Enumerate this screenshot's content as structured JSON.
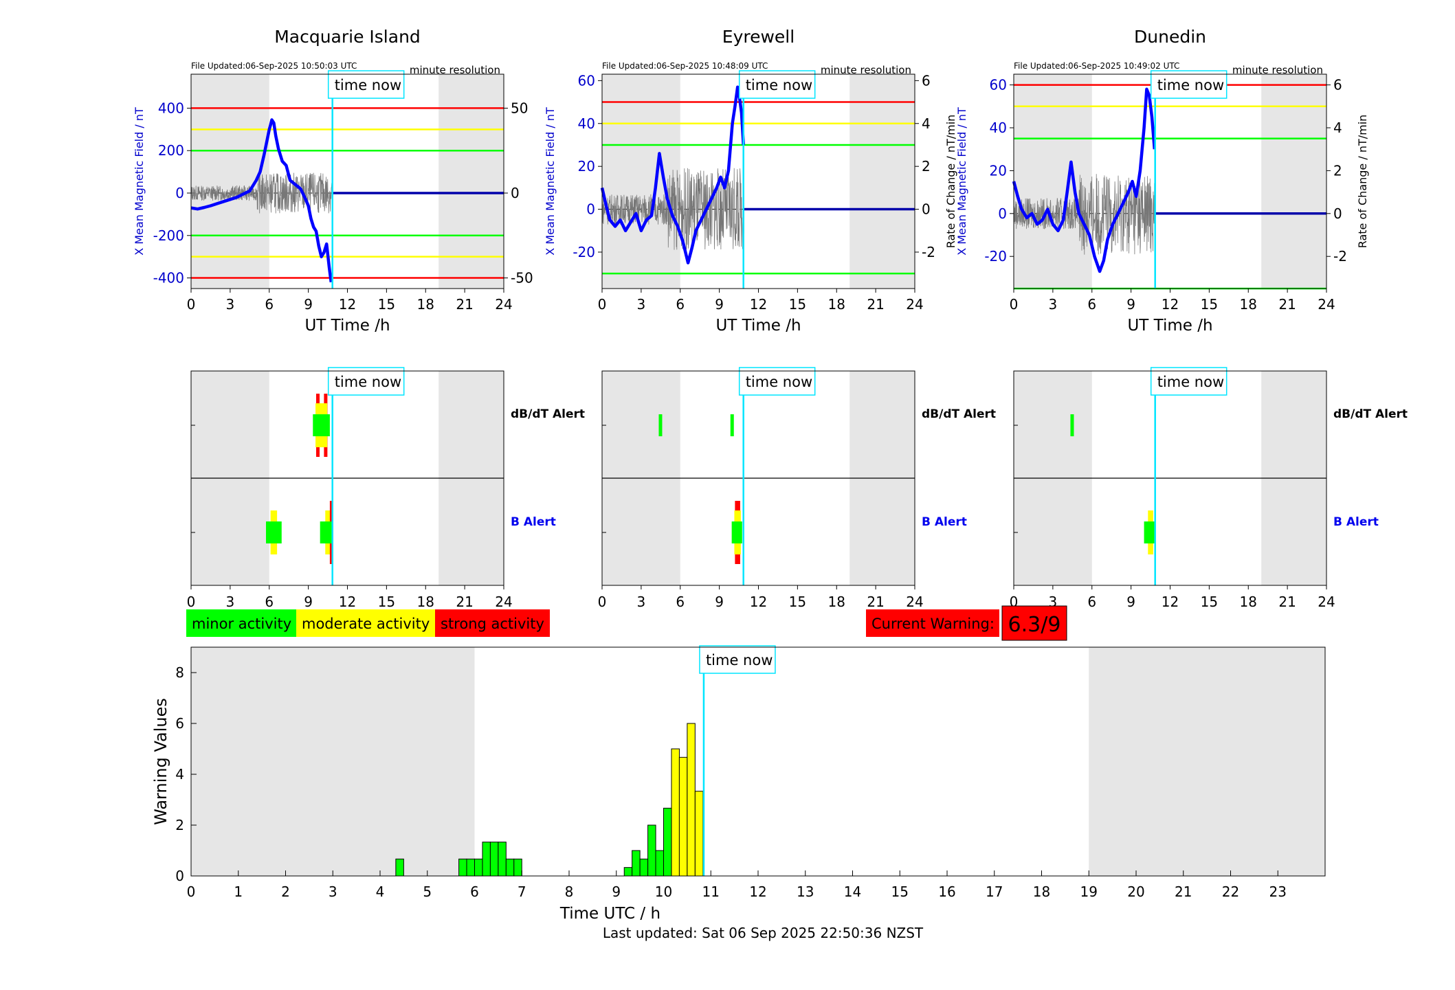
{
  "stations": [
    {
      "title": "Macquarie Island",
      "file_updated": "File Updated:06-Sep-2025 10:50:03 UTC",
      "resolution": "minute resolution",
      "left_axis_label": "X Mean Magnetic Field / nT",
      "right_axis_label": "",
      "x_label": "UT Time /h",
      "time_now_label": "time now",
      "ylim": [
        -450,
        560
      ],
      "left_ticks": [
        -400,
        -200,
        0,
        200,
        400
      ],
      "right_ticks": [
        -50,
        0,
        50
      ],
      "right_scale": 8,
      "thresholds": [
        {
          "value": 400,
          "color": "#ff0000"
        },
        {
          "value": 300,
          "color": "#ffff00"
        },
        {
          "value": 200,
          "color": "#00ff00"
        },
        {
          "value": -200,
          "color": "#00ff00"
        },
        {
          "value": -300,
          "color": "#ffff00"
        },
        {
          "value": -400,
          "color": "#ff0000"
        }
      ],
      "trace_x": [
        0,
        0.5,
        1,
        1.5,
        2,
        2.5,
        3,
        3.5,
        4,
        4.5,
        5,
        5.3,
        5.6,
        5.8,
        6,
        6.1,
        6.2,
        6.35,
        6.5,
        6.7,
        7,
        7.3,
        7.6,
        8,
        8.4,
        8.8,
        9,
        9.2,
        9.4,
        9.6,
        9.8,
        10,
        10.2,
        10.4,
        10.6,
        10.75
      ],
      "trace_y": [
        -70,
        -75,
        -68,
        -60,
        -50,
        -40,
        -30,
        -20,
        -5,
        10,
        60,
        100,
        180,
        240,
        300,
        320,
        345,
        330,
        270,
        210,
        150,
        130,
        60,
        40,
        20,
        -30,
        -60,
        -120,
        -160,
        -180,
        -250,
        -300,
        -280,
        -240,
        -350,
        -420
      ],
      "flat_from": 10.8,
      "flat_value": 0,
      "noise_amp": 60,
      "noise_mid": 0
    },
    {
      "title": "Eyrewell",
      "file_updated": "File Updated:06-Sep-2025 10:48:09 UTC",
      "resolution": "minute resolution",
      "left_axis_label": "X Mean Magnetic Field / nT",
      "right_axis_label": "Rate of Change / nT/min",
      "x_label": "UT Time /h",
      "time_now_label": "time now",
      "ylim": [
        -37,
        63
      ],
      "left_ticks": [
        -20,
        0,
        20,
        40,
        60
      ],
      "right_ticks": [
        -2,
        0,
        2,
        4,
        6
      ],
      "right_scale": 10,
      "thresholds": [
        {
          "value": 50,
          "color": "#ff0000"
        },
        {
          "value": 40,
          "color": "#ffff00"
        },
        {
          "value": 30,
          "color": "#00ff00"
        },
        {
          "value": -30,
          "color": "#00ff00"
        }
      ],
      "trace_x": [
        0,
        0.3,
        0.6,
        1,
        1.4,
        1.8,
        2.2,
        2.6,
        3,
        3.4,
        3.8,
        4.1,
        4.4,
        4.7,
        5,
        5.4,
        5.8,
        6.2,
        6.6,
        6.9,
        7.2,
        7.6,
        8,
        8.4,
        8.8,
        9.1,
        9.4,
        9.7,
        10,
        10.2,
        10.4,
        10.55,
        10.7,
        10.85
      ],
      "trace_y": [
        10,
        2,
        -5,
        -8,
        -5,
        -10,
        -6,
        -2,
        -10,
        -5,
        -3,
        10,
        26,
        15,
        5,
        -3,
        -8,
        -15,
        -25,
        -18,
        -10,
        -5,
        0,
        5,
        10,
        15,
        10,
        18,
        40,
        48,
        57,
        52,
        45,
        30
      ],
      "flat_from": 10.9,
      "flat_value": 0,
      "noise_amp": 12,
      "noise_mid": 0
    },
    {
      "title": "Dunedin",
      "file_updated": "File Updated:06-Sep-2025 10:49:02 UTC",
      "resolution": "minute resolution",
      "left_axis_label": "X Mean Magnetic Field / nT",
      "right_axis_label": "Rate of Change / nT/min",
      "x_label": "UT Time /h",
      "time_now_label": "time now",
      "ylim": [
        -35,
        65
      ],
      "left_ticks": [
        -20,
        0,
        20,
        40,
        60
      ],
      "right_ticks": [
        -2,
        0,
        2,
        4,
        6
      ],
      "right_scale": 10,
      "thresholds": [
        {
          "value": 60,
          "color": "#ff0000"
        },
        {
          "value": 50,
          "color": "#ffff00"
        },
        {
          "value": 35,
          "color": "#00ff00"
        },
        {
          "value": -35,
          "color": "#00ff00"
        }
      ],
      "trace_x": [
        0,
        0.3,
        0.6,
        1,
        1.4,
        1.8,
        2.2,
        2.6,
        3,
        3.4,
        3.8,
        4.1,
        4.4,
        4.7,
        5,
        5.4,
        5.8,
        6.2,
        6.6,
        6.9,
        7.2,
        7.6,
        8,
        8.4,
        8.8,
        9.1,
        9.4,
        9.7,
        10,
        10.2,
        10.4,
        10.6,
        10.8
      ],
      "trace_y": [
        15,
        8,
        2,
        -2,
        0,
        -5,
        -3,
        2,
        -5,
        -8,
        -3,
        10,
        24,
        10,
        0,
        -5,
        -10,
        -20,
        -27,
        -22,
        -12,
        -5,
        0,
        5,
        10,
        15,
        8,
        20,
        40,
        58,
        55,
        45,
        30
      ],
      "flat_from": 10.85,
      "flat_value": 0,
      "noise_amp": 12,
      "noise_mid": 0
    }
  ],
  "alert_panels": [
    {
      "time_now_label": "time now",
      "dbdt_label": "dB/dT Alert",
      "b_label": "B Alert",
      "dbdt_marks": [
        {
          "x": 9.6,
          "w": 0.15,
          "level": "strong"
        },
        {
          "x": 10.2,
          "w": 0.15,
          "level": "strong"
        },
        {
          "x": 9.55,
          "w": 0.9,
          "level": "moderate"
        },
        {
          "x": 9.35,
          "w": 1.3,
          "level": "minor"
        }
      ],
      "b_marks": [
        {
          "x": 6.1,
          "w": 0.5,
          "level": "moderate"
        },
        {
          "x": 5.75,
          "w": 1.2,
          "level": "minor"
        },
        {
          "x": 10.3,
          "w": 0.4,
          "level": "moderate"
        },
        {
          "x": 10.65,
          "w": 0.15,
          "level": "strong"
        },
        {
          "x": 9.9,
          "w": 0.9,
          "level": "minor"
        }
      ]
    },
    {
      "time_now_label": "time now",
      "dbdt_label": "dB/dT Alert",
      "b_label": "B Alert",
      "dbdt_marks": [
        {
          "x": 4.35,
          "w": 0.2,
          "level": "minor"
        },
        {
          "x": 9.85,
          "w": 0.2,
          "level": "minor"
        }
      ],
      "b_marks": [
        {
          "x": 10.2,
          "w": 0.4,
          "level": "strong"
        },
        {
          "x": 10.15,
          "w": 0.5,
          "level": "moderate"
        },
        {
          "x": 9.95,
          "w": 0.8,
          "level": "minor"
        }
      ]
    },
    {
      "time_now_label": "time now",
      "dbdt_label": "dB/dT Alert",
      "b_label": "B Alert",
      "dbdt_marks": [
        {
          "x": 4.35,
          "w": 0.2,
          "level": "minor"
        }
      ],
      "b_marks": [
        {
          "x": 10.3,
          "w": 0.4,
          "level": "moderate"
        },
        {
          "x": 10.0,
          "w": 0.9,
          "level": "minor"
        }
      ]
    }
  ],
  "legend": [
    {
      "label": "minor activity",
      "color": "#00ff00"
    },
    {
      "label": "moderate activity",
      "color": "#ffff00"
    },
    {
      "label": "strong activity",
      "color": "#ff0000"
    }
  ],
  "current_warning": {
    "label": "Current Warning:",
    "value": "6.3/9",
    "color": "#ff0000"
  },
  "chart_data": {
    "type": "bar",
    "xlabel": "Time UTC / h",
    "ylabel": "Warning Values",
    "xlim": [
      0,
      24
    ],
    "ylim": [
      0,
      9
    ],
    "x_ticks": [
      0,
      1,
      2,
      3,
      4,
      5,
      6,
      7,
      8,
      9,
      10,
      11,
      12,
      13,
      14,
      15,
      16,
      17,
      18,
      19,
      20,
      21,
      22,
      23
    ],
    "y_ticks": [
      0,
      2,
      4,
      6,
      8
    ],
    "time_now": 10.85,
    "time_now_label": "time now",
    "shaded_ranges": [
      [
        0,
        6
      ],
      [
        19,
        24
      ]
    ],
    "bar_width": 0.1667,
    "bars": [
      {
        "x": 4.333,
        "value": 0.667,
        "level": "minor"
      },
      {
        "x": 5.667,
        "value": 0.667,
        "level": "minor"
      },
      {
        "x": 5.833,
        "value": 0.667,
        "level": "minor"
      },
      {
        "x": 6.0,
        "value": 0.667,
        "level": "minor"
      },
      {
        "x": 6.167,
        "value": 1.333,
        "level": "minor"
      },
      {
        "x": 6.333,
        "value": 1.333,
        "level": "minor"
      },
      {
        "x": 6.5,
        "value": 1.333,
        "level": "minor"
      },
      {
        "x": 6.667,
        "value": 0.667,
        "level": "minor"
      },
      {
        "x": 6.833,
        "value": 0.667,
        "level": "minor"
      },
      {
        "x": 9.167,
        "value": 0.333,
        "level": "minor"
      },
      {
        "x": 9.333,
        "value": 1.0,
        "level": "minor"
      },
      {
        "x": 9.5,
        "value": 0.667,
        "level": "minor"
      },
      {
        "x": 9.667,
        "value": 2.0,
        "level": "minor"
      },
      {
        "x": 9.833,
        "value": 1.0,
        "level": "minor"
      },
      {
        "x": 10.0,
        "value": 2.667,
        "level": "minor"
      },
      {
        "x": 10.167,
        "value": 5.0,
        "level": "moderate"
      },
      {
        "x": 10.333,
        "value": 4.667,
        "level": "moderate"
      },
      {
        "x": 10.5,
        "value": 6.0,
        "level": "moderate"
      },
      {
        "x": 10.667,
        "value": 3.333,
        "level": "moderate"
      }
    ]
  },
  "footer": {
    "last_updated": "Last updated: Sat 06 Sep 2025 22:50:36 NZST"
  },
  "colors": {
    "minor": "#00ff00",
    "moderate": "#ffff00",
    "strong": "#ff0000",
    "night_shade": "#e6e6e6",
    "trace": "#0000ff",
    "time_now": "#00e5ff"
  }
}
